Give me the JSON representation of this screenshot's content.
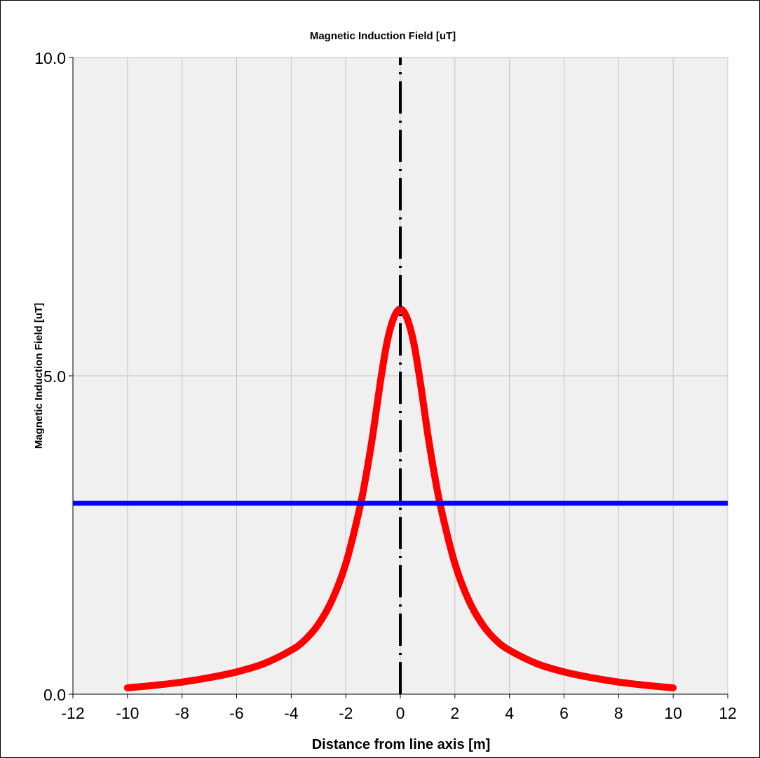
{
  "chart_data": {
    "type": "line",
    "title": "Magnetic Induction Field [uT]",
    "xlabel": "Distance from line axis [m]",
    "ylabel": "Magnetic Induction Field  [uT]",
    "xlim": [
      -12,
      12
    ],
    "ylim": [
      0,
      10
    ],
    "x_ticks": [
      "-12",
      "-10",
      "-8",
      "-6",
      "-4",
      "-2",
      "0",
      "2",
      "4",
      "6",
      "8",
      "10",
      "12"
    ],
    "y_ticks": [
      "0.0",
      "5.0",
      "10.0"
    ],
    "grid": true,
    "series": [
      {
        "color": "#ff0000",
        "style": "solid",
        "x": [
          -10,
          -9,
          -8,
          -7,
          -6,
          -5,
          -4,
          -3.5,
          -3,
          -2.5,
          -2,
          -1.5,
          -1.25,
          -1,
          -0.75,
          -0.5,
          -0.25,
          0,
          0.25,
          0.5,
          0.75,
          1,
          1.25,
          1.5,
          2,
          2.5,
          3,
          3.5,
          4,
          5,
          6,
          7,
          8,
          9,
          10
        ],
        "y": [
          0.1,
          0.14,
          0.19,
          0.26,
          0.35,
          0.48,
          0.69,
          0.85,
          1.1,
          1.48,
          2.05,
          2.9,
          3.45,
          4.1,
          4.85,
          5.5,
          5.9,
          6.05,
          5.9,
          5.5,
          4.85,
          4.1,
          3.45,
          2.9,
          2.05,
          1.48,
          1.1,
          0.85,
          0.69,
          0.48,
          0.35,
          0.26,
          0.19,
          0.14,
          0.1
        ]
      },
      {
        "color": "#0000ff",
        "style": "solid",
        "x": [
          -12,
          12
        ],
        "y": [
          3.0,
          3.0
        ]
      },
      {
        "color": "#000000",
        "style": "dash-dot",
        "x": [
          0,
          0
        ],
        "y": [
          0,
          10
        ]
      }
    ]
  }
}
